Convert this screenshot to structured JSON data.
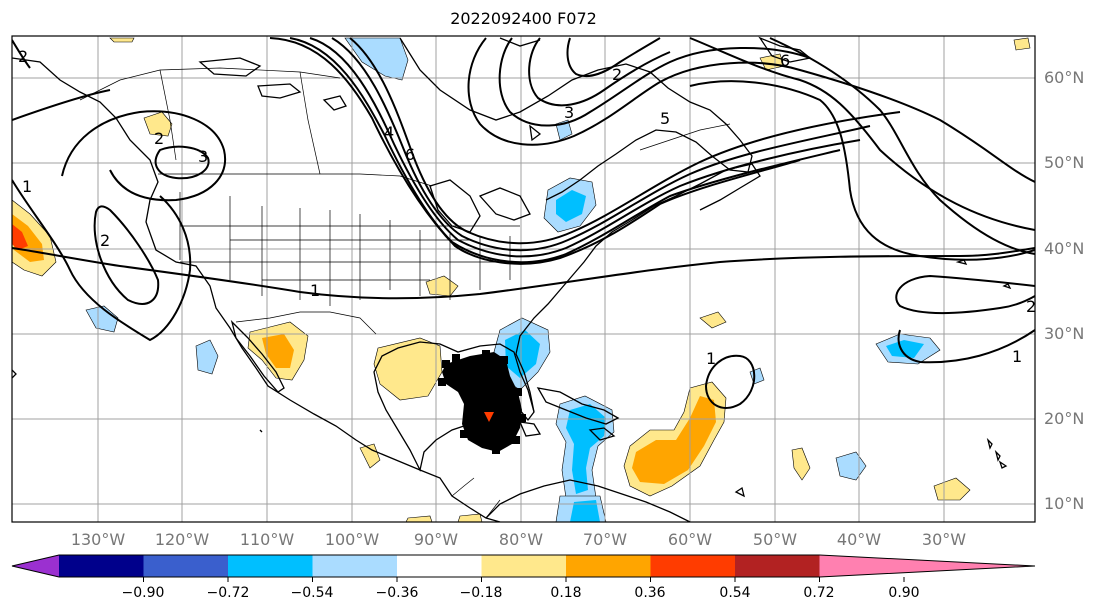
{
  "title": "2022092400 F072",
  "latitude_labels": [
    "60°N",
    "50°N",
    "40°N",
    "30°N",
    "20°N",
    "10°N"
  ],
  "longitude_labels": [
    "130°W",
    "120°W",
    "110°W",
    "100°W",
    "90°W",
    "80°W",
    "70°W",
    "60°W",
    "50°W",
    "40°W",
    "30°W"
  ],
  "contour_labels": [
    "1",
    "2",
    "3",
    "4",
    "5",
    "6"
  ],
  "colorbar": {
    "ticks": [
      "−0.90",
      "−0.72",
      "−0.54",
      "−0.36",
      "−0.18",
      "0.18",
      "0.36",
      "0.54",
      "0.72",
      "0.90"
    ],
    "colors": [
      "#9b30d0",
      "#00008b",
      "#3a5fcd",
      "#00bfff",
      "#aadcff",
      "#ffffff",
      "#ffe88c",
      "#ffa500",
      "#ff3c00",
      "#b22222",
      "#ff80b0"
    ]
  },
  "map_colors": {
    "light_blue": "#aadcff",
    "blue": "#00bfff",
    "yellow": "#ffe88c",
    "orange": "#ffa500",
    "red": "#ff3c00"
  }
}
